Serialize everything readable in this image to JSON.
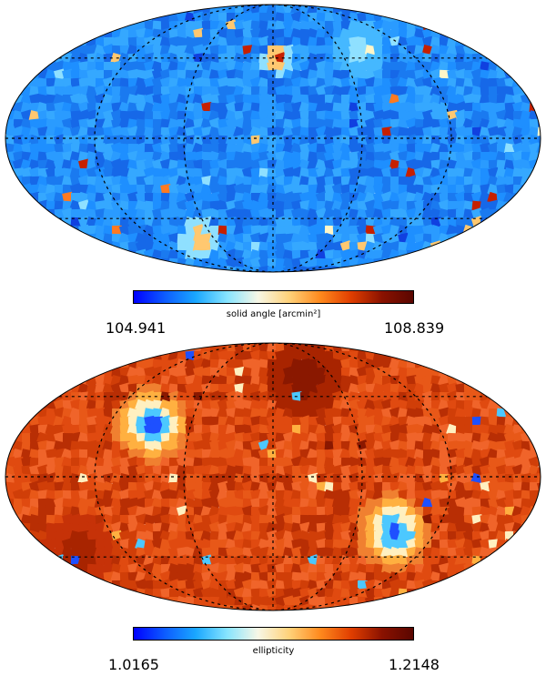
{
  "maps": [
    {
      "colorbar_label": "solid angle [arcmin²]",
      "min_label": "104.941",
      "max_label": "108.839",
      "base_colors": [
        "#1e8fff",
        "#2a9bff",
        "#1a7af0",
        "#35a8ff",
        "#1668e8"
      ],
      "patch_colors": [
        "#8fe0ff",
        "#fff6c8",
        "#ffc870",
        "#ff7a20",
        "#c62000",
        "#1040e0"
      ]
    },
    {
      "colorbar_label": "ellipticity",
      "min_label": "1.0165",
      "max_label": "1.2148",
      "base_colors": [
        "#e04a10",
        "#d03e08",
        "#e85818",
        "#b82e04",
        "#f0642a"
      ],
      "patch_colors": [
        "#1e50ff",
        "#4cc8ff",
        "#fff0c0",
        "#ffb040",
        "#8a1800"
      ]
    }
  ],
  "colorbar_stops": [
    "#0000ff",
    "#0d5cff",
    "#1aa7ff",
    "#86e4ff",
    "#f7f7e6",
    "#ffd27a",
    "#ff8a1e",
    "#e03e00",
    "#8a1200",
    "#5a0600"
  ]
}
